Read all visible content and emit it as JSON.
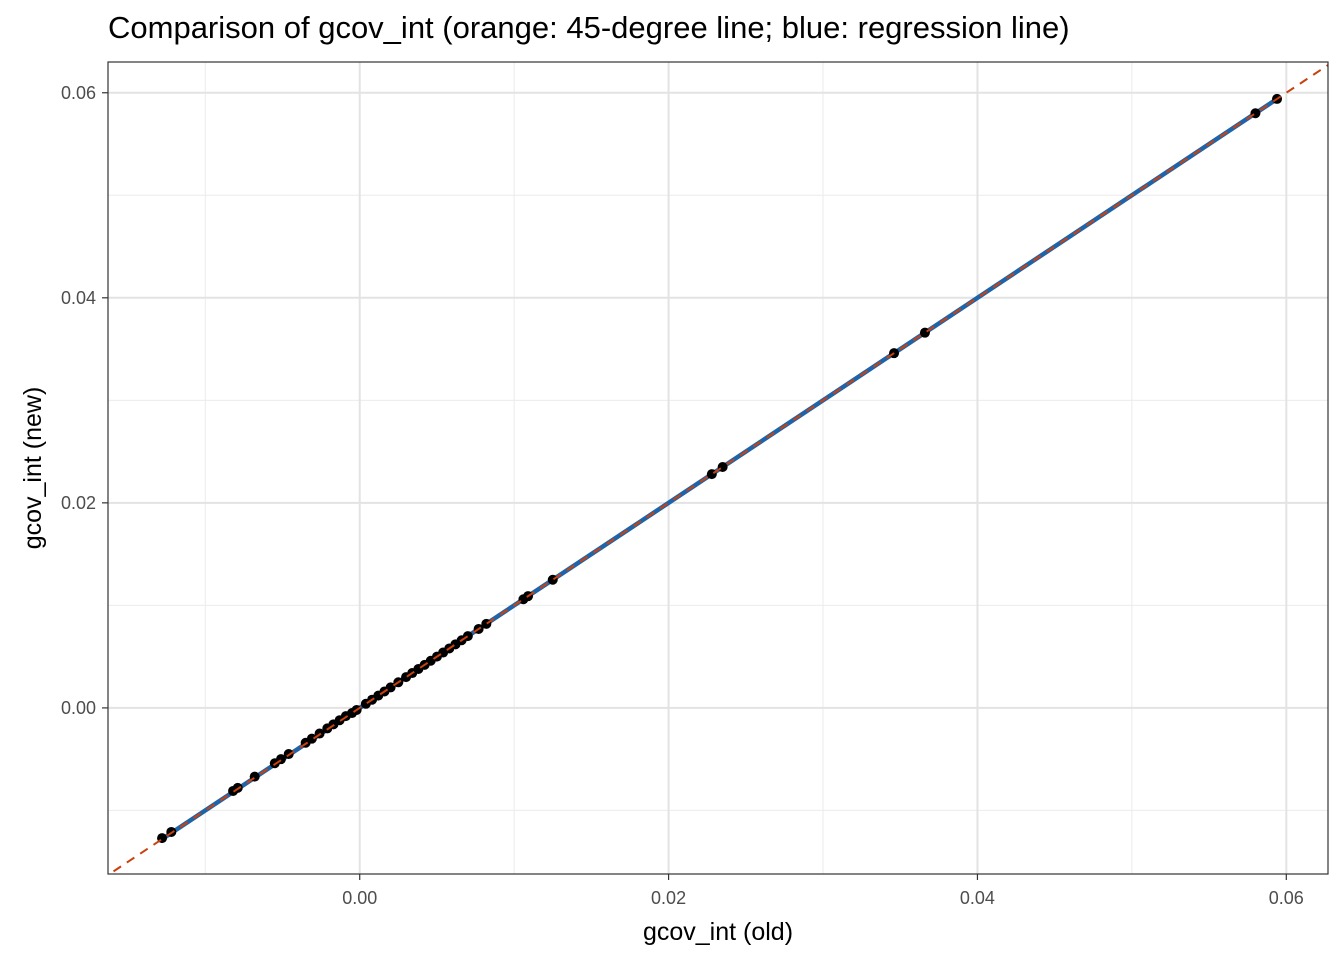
{
  "chart_data": {
    "type": "scatter",
    "title": "Comparison of gcov_int (orange: 45-degree line; blue: regression line)",
    "xlabel": "gcov_int (old)",
    "ylabel": "gcov_int (new)",
    "xlim": [
      -0.0163,
      0.0627
    ],
    "ylim": [
      -0.0162,
      0.063
    ],
    "x_ticks": [
      0.0,
      0.02,
      0.04,
      0.06
    ],
    "x_tick_labels": [
      "0.00",
      "0.02",
      "0.04",
      "0.06"
    ],
    "y_ticks": [
      0.0,
      0.02,
      0.04,
      0.06
    ],
    "y_tick_labels": [
      "0.00",
      "0.02",
      "0.04",
      "0.06"
    ],
    "grid": true,
    "legend": "none",
    "colors": {
      "points": "#000000",
      "identity_line": "#c8410e",
      "regression_line": "#1f63a8"
    },
    "reference_lines": [
      {
        "kind": "identity",
        "slope": 1,
        "intercept": 0,
        "style": "dashed",
        "color": "#c8410e"
      },
      {
        "kind": "regression",
        "slope": 1,
        "intercept": 0,
        "style": "solid",
        "color": "#1f63a8"
      }
    ],
    "points": [
      [
        -0.0128,
        -0.0127
      ],
      [
        -0.0122,
        -0.0121
      ],
      [
        -0.0082,
        -0.0081
      ],
      [
        -0.0079,
        -0.0078
      ],
      [
        -0.0068,
        -0.0067
      ],
      [
        -0.0055,
        -0.0054
      ],
      [
        -0.0051,
        -0.005
      ],
      [
        -0.0046,
        -0.0045
      ],
      [
        -0.0035,
        -0.0034
      ],
      [
        -0.0031,
        -0.003
      ],
      [
        -0.0026,
        -0.0025
      ],
      [
        -0.0021,
        -0.002
      ],
      [
        -0.0017,
        -0.0016
      ],
      [
        -0.0013,
        -0.0012
      ],
      [
        -0.0009,
        -0.0008
      ],
      [
        -0.0005,
        -0.0005
      ],
      [
        -0.0002,
        -0.0002
      ],
      [
        0.0004,
        0.0004
      ],
      [
        0.0008,
        0.0008
      ],
      [
        0.0012,
        0.0012
      ],
      [
        0.0016,
        0.0016
      ],
      [
        0.002,
        0.002
      ],
      [
        0.0025,
        0.0025
      ],
      [
        0.003,
        0.003
      ],
      [
        0.0034,
        0.0034
      ],
      [
        0.0038,
        0.0038
      ],
      [
        0.0042,
        0.0042
      ],
      [
        0.0046,
        0.0046
      ],
      [
        0.005,
        0.005
      ],
      [
        0.0054,
        0.0054
      ],
      [
        0.0058,
        0.0058
      ],
      [
        0.0062,
        0.0062
      ],
      [
        0.0066,
        0.0066
      ],
      [
        0.007,
        0.007
      ],
      [
        0.0077,
        0.0077
      ],
      [
        0.0082,
        0.0082
      ],
      [
        0.0106,
        0.0106
      ],
      [
        0.0109,
        0.0109
      ],
      [
        0.0125,
        0.0125
      ],
      [
        0.0228,
        0.0228
      ],
      [
        0.0235,
        0.0235
      ],
      [
        0.0346,
        0.0346
      ],
      [
        0.0366,
        0.0366
      ],
      [
        0.058,
        0.058
      ],
      [
        0.0594,
        0.0594
      ]
    ]
  }
}
